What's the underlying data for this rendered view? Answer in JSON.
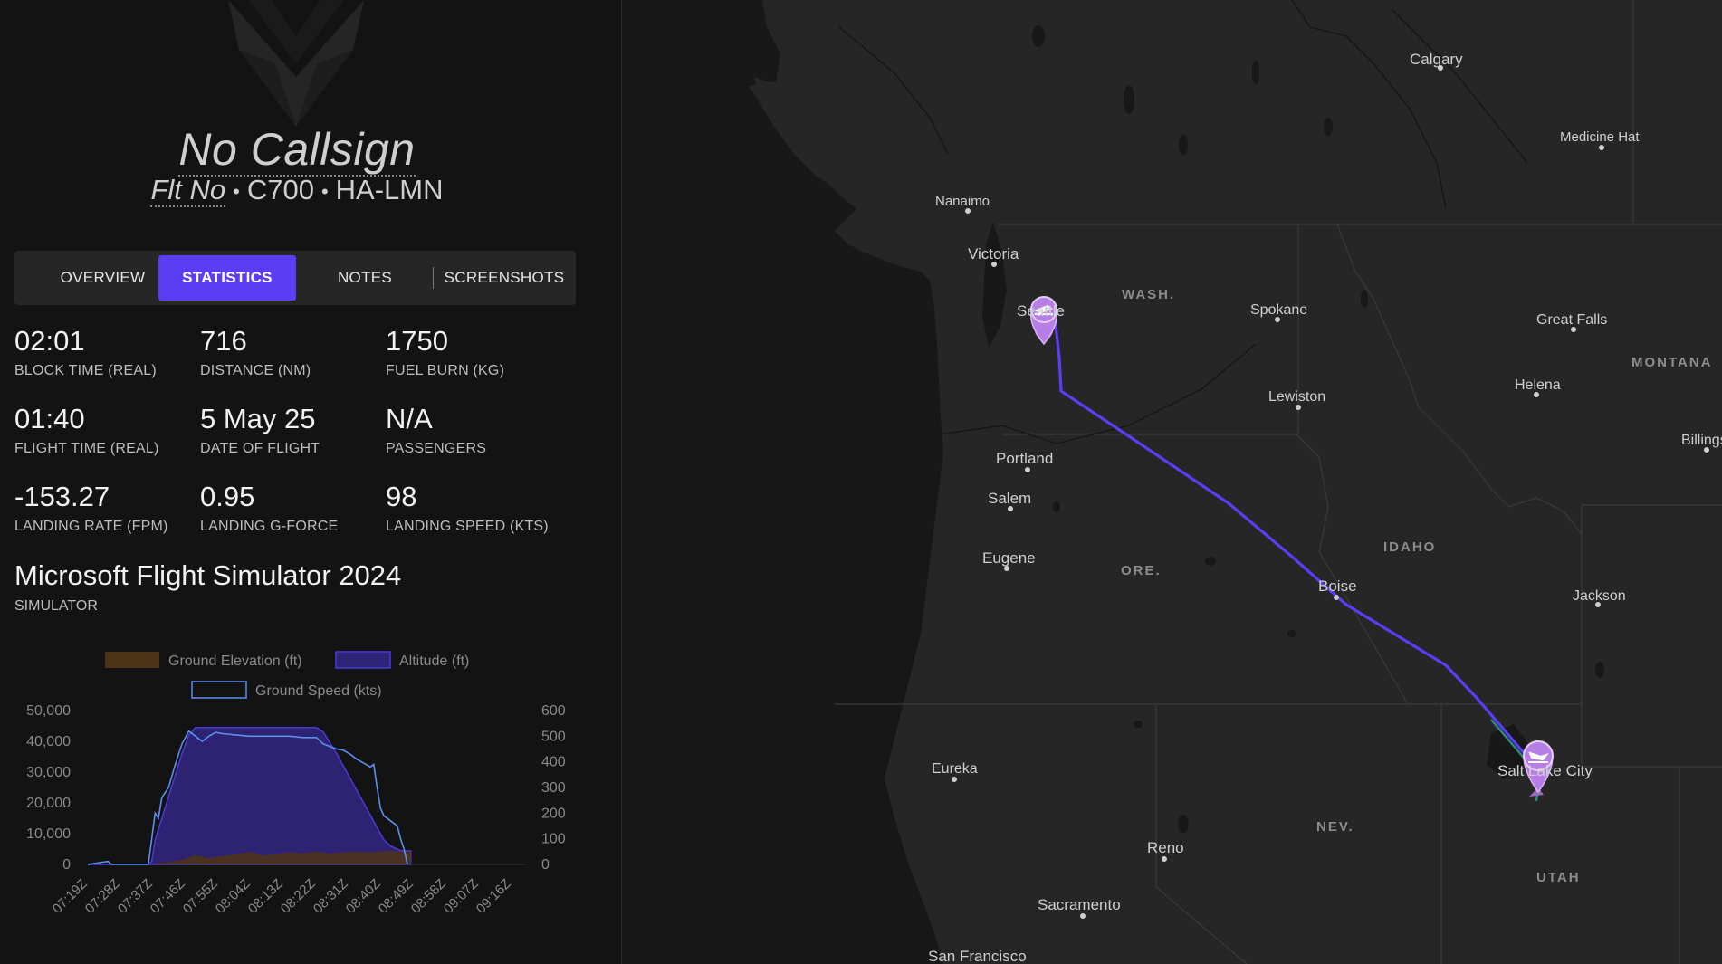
{
  "header": {
    "callsign": "No Callsign",
    "flight_number": "Flt No",
    "aircraft_type": "C700",
    "registration": "HA-LMN",
    "separator": "•"
  },
  "tabs": [
    {
      "label": "OVERVIEW",
      "active": false
    },
    {
      "label": "STATISTICS",
      "active": true
    },
    {
      "label": "NOTES",
      "active": false
    },
    {
      "label": "SCREENSHOTS",
      "active": false
    }
  ],
  "stats": [
    {
      "value": "02:01",
      "label": "BLOCK TIME (REAL)"
    },
    {
      "value": "716",
      "label": "DISTANCE (NM)"
    },
    {
      "value": "1750",
      "label": "FUEL BURN (KG)"
    },
    {
      "value": "01:40",
      "label": "FLIGHT TIME (REAL)"
    },
    {
      "value": "5 May 25",
      "label": "DATE OF FLIGHT"
    },
    {
      "value": "N/A",
      "label": "PASSENGERS"
    },
    {
      "value": "-153.27",
      "label": "LANDING RATE (FPM)"
    },
    {
      "value": "0.95",
      "label": "LANDING G-FORCE"
    },
    {
      "value": "98",
      "label": "LANDING SPEED (KTS)"
    }
  ],
  "simulator": {
    "name": "Microsoft Flight Simulator 2024",
    "label": "SIMULATOR"
  },
  "colors": {
    "accent": "#5b3df5",
    "altitude_fill": "#2f2478",
    "altitude_line": "#4a3ad6",
    "ground_fill": "#4d3418",
    "speed_line": "#5b8ef0",
    "route": "#5b3df5",
    "marker": "#b77ee8"
  },
  "chart_data": {
    "type": "area",
    "legend": [
      "Ground Elevation (ft)",
      "Altitude (ft)",
      "Ground Speed (kts)"
    ],
    "legend_position": "top",
    "x_ticks": [
      "07:19Z",
      "07:28Z",
      "07:37Z",
      "07:46Z",
      "07:55Z",
      "08:04Z",
      "08:13Z",
      "08:22Z",
      "08:31Z",
      "08:40Z",
      "08:49Z",
      "08:58Z",
      "09:07Z",
      "09:16Z"
    ],
    "y_left_ticks": [
      "50,000",
      "40,000",
      "30,000",
      "20,000",
      "10,000",
      "0"
    ],
    "y_right_ticks": [
      "600",
      "500",
      "400",
      "300",
      "200",
      "100",
      "0"
    ],
    "y_left_range": [
      0,
      50000
    ],
    "y_right_range": [
      0,
      600
    ],
    "x_range_minutes": [
      0,
      130
    ],
    "series": [
      {
        "name": "Altitude (ft)",
        "x": [
          0,
          18,
          19,
          20,
          24,
          28,
          30,
          32,
          36,
          68,
          70,
          74,
          80,
          84,
          86,
          88,
          90,
          92,
          93,
          95,
          96
        ],
        "values": [
          0,
          0,
          1000,
          8000,
          22000,
          36000,
          42000,
          44500,
          44500,
          44500,
          43000,
          36000,
          24000,
          16000,
          12000,
          8000,
          6000,
          5000,
          4500,
          4400,
          4400
        ]
      },
      {
        "name": "Ground Elevation (ft)",
        "x": [
          0,
          18,
          20,
          24,
          28,
          32,
          36,
          40,
          44,
          48,
          52,
          56,
          60,
          64,
          68,
          72,
          76,
          80,
          84,
          88,
          92,
          96
        ],
        "values": [
          0,
          0,
          300,
          800,
          1500,
          3000,
          2000,
          2800,
          3200,
          4200,
          2800,
          3300,
          4000,
          3600,
          4200,
          3500,
          4000,
          4200,
          4000,
          4300,
          4300,
          4200
        ]
      },
      {
        "name": "Ground Speed (kts)",
        "x": [
          0,
          6,
          7,
          18,
          19,
          20,
          21,
          22,
          24,
          26,
          28,
          30,
          32,
          34,
          36,
          38,
          40,
          44,
          48,
          52,
          56,
          60,
          64,
          68,
          70,
          72,
          74,
          76,
          78,
          80,
          82,
          84,
          85,
          86,
          87,
          88,
          90,
          92,
          93,
          94,
          95
        ],
        "values": [
          0,
          12,
          0,
          0,
          100,
          200,
          180,
          260,
          300,
          390,
          470,
          520,
          500,
          480,
          500,
          515,
          510,
          505,
          500,
          500,
          500,
          500,
          495,
          495,
          470,
          460,
          450,
          445,
          430,
          410,
          395,
          380,
          390,
          300,
          220,
          190,
          170,
          150,
          100,
          60,
          0
        ]
      }
    ]
  },
  "map": {
    "cities": [
      {
        "name": "Calgary"
      },
      {
        "name": "Medicine Hat"
      },
      {
        "name": "Nanaimo"
      },
      {
        "name": "Victoria"
      },
      {
        "name": "Seattle"
      },
      {
        "name": "Spokane"
      },
      {
        "name": "Great Falls"
      },
      {
        "name": "Helena"
      },
      {
        "name": "Lewiston"
      },
      {
        "name": "Billings"
      },
      {
        "name": "Portland"
      },
      {
        "name": "Salem"
      },
      {
        "name": "Eugene"
      },
      {
        "name": "Boise"
      },
      {
        "name": "Jackson"
      },
      {
        "name": "Salt Lake City"
      },
      {
        "name": "Eureka"
      },
      {
        "name": "Reno"
      },
      {
        "name": "Sacramento"
      },
      {
        "name": "San Francisco"
      }
    ],
    "regions": [
      "WASH.",
      "MONTANA",
      "IDAHO",
      "ORE.",
      "NEV.",
      "UTAH"
    ],
    "departure_marker": "departure-airport",
    "arrival_marker": "arrival-airport"
  }
}
